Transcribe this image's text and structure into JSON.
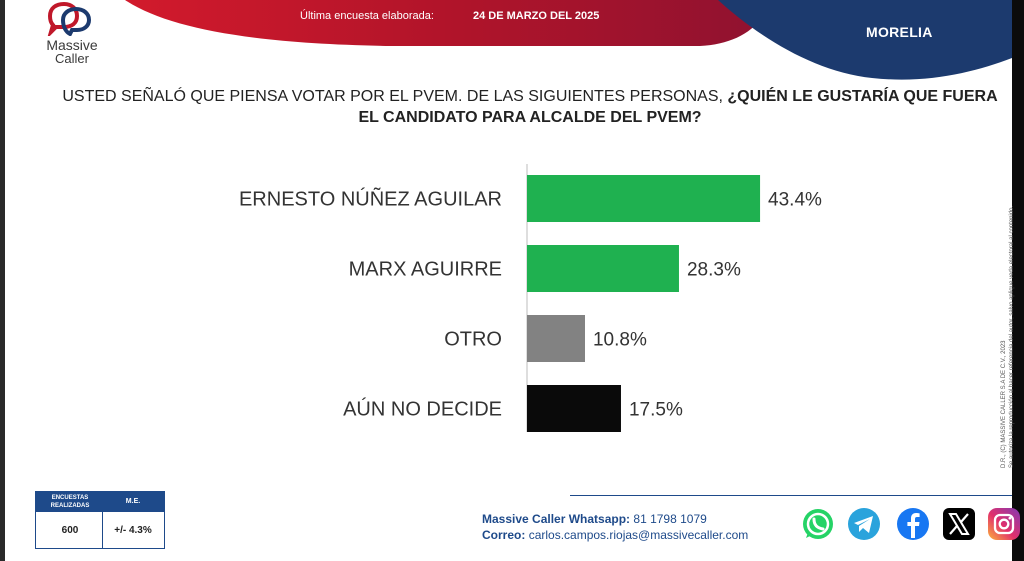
{
  "header": {
    "date_label": "Última encuesta elaborada:",
    "date_value": "24 DE MARZO DEL 2025",
    "city": "MORELIA",
    "colors": {
      "red": "#c0182a",
      "navy": "#1c3a6e"
    }
  },
  "logo": {
    "line1": "Massive",
    "line2": "Caller"
  },
  "question": {
    "plain": "USTED SEÑALÓ QUE PIENSA VOTAR POR EL PVEM.  DE LAS SIGUIENTES PERSONAS, ",
    "bold": "¿QUIÉN LE GUSTARÍA QUE FUERA EL CANDIDATO PARA ALCALDE DEL PVEM?"
  },
  "chart_data": {
    "type": "bar",
    "orientation": "horizontal",
    "categories": [
      "ERNESTO NÚÑEZ AGUILAR",
      "MARX AGUIRRE",
      "OTRO",
      "AÚN NO DECIDE"
    ],
    "values": [
      43.4,
      28.3,
      10.8,
      17.5
    ],
    "value_labels": [
      "43.4%",
      "28.3%",
      "10.8%",
      "17.5%"
    ],
    "colors": [
      "#1fb150",
      "#1fb150",
      "#828282",
      "#0a0a0a"
    ],
    "xlim": [
      0,
      100
    ],
    "grid": false,
    "legend": "none"
  },
  "disclaimer": {
    "line1": "D.R., (C) MASSIVE CALLER S.A DE C.V., 2023",
    "line2": "Se autoriza la reproducción al hacer referencia del autor, salvo aplique veda electoral al contenido."
  },
  "info_box": {
    "col1_header": "ENCUESTAS REALIZADAS",
    "col2_header": "M.E.",
    "col1_value": "600",
    "col2_value": "+/- 4.3%"
  },
  "contact": {
    "whatsapp_label": "Massive Caller Whatsapp:",
    "whatsapp_value": "81 1798 1079",
    "email_label": "Correo:",
    "email_value": "carlos.campos.riojas@massivecaller.com"
  },
  "social_icons": [
    "whatsapp-icon",
    "telegram-icon",
    "facebook-icon",
    "x-icon",
    "instagram-icon"
  ]
}
